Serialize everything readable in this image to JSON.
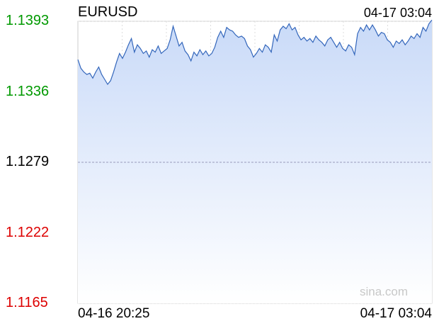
{
  "header": {
    "symbol": "EURUSD",
    "timestamp": "04-17 03:04"
  },
  "watermark": "sina.com",
  "colors": {
    "up": "#009900",
    "down": "#dd0000",
    "neutral": "#000000",
    "line": "#3366bb",
    "fill": "#cddcf7"
  },
  "chart_data": {
    "type": "area",
    "title": "EURUSD",
    "xlabel": "",
    "ylabel": "",
    "grid": true,
    "ylim": [
      1.1165,
      1.1393
    ],
    "reference": 1.1279,
    "y_ticks": [
      {
        "label": "1.1393",
        "value": 1.1393,
        "trend": "up"
      },
      {
        "label": "1.1336",
        "value": 1.1336,
        "trend": "up"
      },
      {
        "label": "1.1279",
        "value": 1.1279,
        "trend": "neutral"
      },
      {
        "label": "1.1222",
        "value": 1.1222,
        "trend": "down"
      },
      {
        "label": "1.1165",
        "value": 1.1165,
        "trend": "down"
      }
    ],
    "x_start_label": "04-16 20:25",
    "x_end_label": "04-17 03:04",
    "series": [
      {
        "values": [
          1.1362,
          1.1355,
          1.1352,
          1.135,
          1.1351,
          1.1347,
          1.1352,
          1.1356,
          1.135,
          1.1346,
          1.1342,
          1.1345,
          1.1352,
          1.136,
          1.1367,
          1.1363,
          1.1368,
          1.1374,
          1.1379,
          1.1368,
          1.1374,
          1.1371,
          1.1367,
          1.1369,
          1.1364,
          1.137,
          1.1368,
          1.1373,
          1.1367,
          1.1369,
          1.1371,
          1.1378,
          1.1389,
          1.1381,
          1.1373,
          1.1376,
          1.1369,
          1.1366,
          1.1361,
          1.1368,
          1.1365,
          1.137,
          1.1366,
          1.1369,
          1.1365,
          1.1367,
          1.1372,
          1.138,
          1.1385,
          1.138,
          1.1388,
          1.1386,
          1.1385,
          1.1382,
          1.138,
          1.1381,
          1.1379,
          1.1373,
          1.137,
          1.1364,
          1.1367,
          1.1371,
          1.1368,
          1.1374,
          1.1372,
          1.1368,
          1.1382,
          1.1377,
          1.1386,
          1.1389,
          1.1387,
          1.1391,
          1.1386,
          1.1388,
          1.1382,
          1.1378,
          1.138,
          1.1377,
          1.1379,
          1.1376,
          1.1381,
          1.1378,
          1.1376,
          1.1373,
          1.1378,
          1.138,
          1.1376,
          1.1372,
          1.1376,
          1.1371,
          1.1369,
          1.1374,
          1.1372,
          1.1366,
          1.1383,
          1.1388,
          1.1385,
          1.139,
          1.1386,
          1.139,
          1.1386,
          1.1381,
          1.1384,
          1.1383,
          1.1378,
          1.1376,
          1.1372,
          1.1377,
          1.1375,
          1.1378,
          1.1374,
          1.1377,
          1.1381,
          1.1379,
          1.1383,
          1.138,
          1.1388,
          1.1385,
          1.1391,
          1.1394
        ]
      }
    ]
  }
}
